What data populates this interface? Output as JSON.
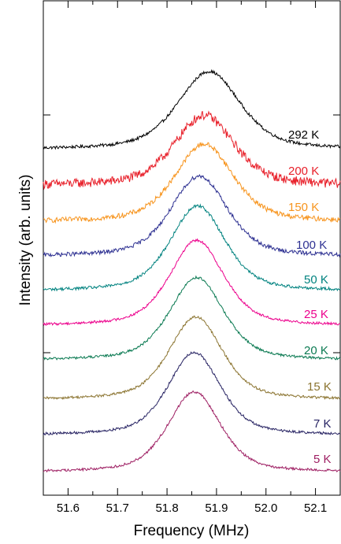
{
  "chart_data": {
    "type": "line",
    "xlabel": "Frequency (MHz)",
    "ylabel": "Intensity (arb. units)",
    "xlim": [
      51.55,
      52.15
    ],
    "xticks": [
      51.6,
      51.7,
      51.8,
      51.9,
      52.0,
      52.1
    ],
    "xtick_labels": [
      "51.6",
      "51.7",
      "51.8",
      "51.9",
      "52.0",
      "52.1"
    ],
    "grid": false,
    "legend": "none (labels drawn beside each curve)",
    "offset_note": "curves vertically stacked (waterfall)",
    "series": [
      {
        "name": "292 K",
        "color": "#000000",
        "center": 51.885,
        "width": 0.075,
        "height": 1.55,
        "noise": 0.03
      },
      {
        "name": "200 K",
        "color": "#e8202a",
        "center": 51.875,
        "width": 0.072,
        "height": 1.4,
        "noise": 0.09
      },
      {
        "name": "150 K",
        "color": "#f7941d",
        "center": 51.875,
        "width": 0.07,
        "height": 1.55,
        "noise": 0.05
      },
      {
        "name": "100 K",
        "color": "#2e3192",
        "center": 51.865,
        "width": 0.068,
        "height": 1.6,
        "noise": 0.04
      },
      {
        "name": "50 K",
        "color": "#00827f",
        "center": 51.862,
        "width": 0.066,
        "height": 1.7,
        "noise": 0.03
      },
      {
        "name": "25 K",
        "color": "#ec008c",
        "center": 51.86,
        "width": 0.065,
        "height": 1.7,
        "noise": 0.025
      },
      {
        "name": "20 K",
        "color": "#0b7a52",
        "center": 51.86,
        "width": 0.065,
        "height": 1.65,
        "noise": 0.025
      },
      {
        "name": "15 K",
        "color": "#8b7430",
        "center": 51.858,
        "width": 0.064,
        "height": 1.65,
        "noise": 0.025
      },
      {
        "name": "7 K",
        "color": "#262262",
        "center": 51.855,
        "width": 0.063,
        "height": 1.65,
        "noise": 0.025
      },
      {
        "name": "5 K",
        "color": "#9e1f63",
        "center": 51.855,
        "width": 0.063,
        "height": 1.6,
        "noise": 0.025
      }
    ]
  }
}
